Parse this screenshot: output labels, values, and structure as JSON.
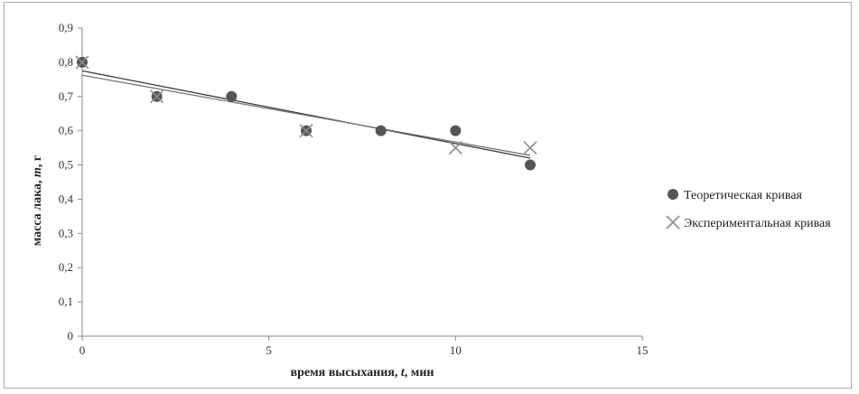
{
  "chart_data": {
    "type": "scatter",
    "title": "",
    "xlabel": {
      "main": "время высыхания, ",
      "var": "t",
      "unit": ", мин"
    },
    "ylabel": {
      "main": "масса лака, ",
      "var": "m",
      "unit": ", г"
    },
    "xlim": [
      0,
      15
    ],
    "ylim": [
      0,
      0.9
    ],
    "x_ticks": [
      "0",
      "5",
      "10",
      "15"
    ],
    "y_ticks": [
      "0",
      "0,1",
      "0,2",
      "0,3",
      "0,4",
      "0,5",
      "0,6",
      "0,7",
      "0,8",
      "0,9"
    ],
    "grid": false,
    "legend_position": "right",
    "series": [
      {
        "name": "Теоретическая кривая",
        "marker": "circle",
        "color": "#555555",
        "x": [
          0,
          2,
          4,
          6,
          8,
          10,
          12
        ],
        "y": [
          0.8,
          0.7,
          0.7,
          0.6,
          0.6,
          0.6,
          0.5
        ],
        "trendline": {
          "from": [
            0,
            0.775
          ],
          "to": [
            12,
            0.52
          ]
        }
      },
      {
        "name": "Экспериментальная кривая",
        "marker": "cross",
        "color": "#8c8c8c",
        "x": [
          0,
          2,
          6,
          10,
          12
        ],
        "y": [
          0.8,
          0.7,
          0.6,
          0.55,
          0.55
        ],
        "trendline": {
          "from": [
            0,
            0.762
          ],
          "to": [
            12,
            0.528
          ]
        }
      }
    ]
  }
}
